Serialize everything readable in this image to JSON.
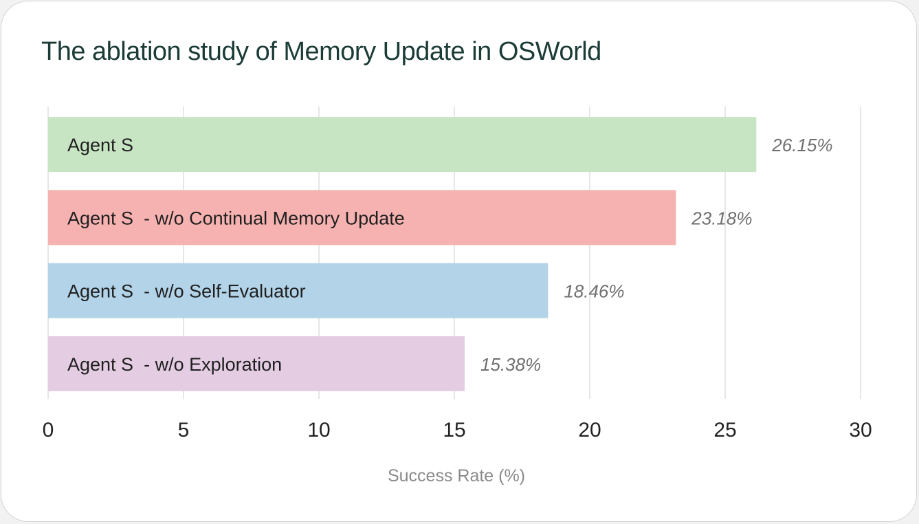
{
  "chart_data": {
    "type": "bar",
    "orientation": "horizontal",
    "title": "The ablation study of Memory Update in OSWorld",
    "xlabel": "Success Rate (%)",
    "ylabel": "",
    "xlim": [
      0,
      30
    ],
    "xticks": [
      0,
      5,
      10,
      15,
      20,
      25,
      30
    ],
    "grid": true,
    "legend": "none",
    "categories": [
      "Agent S",
      "Agent S  - w/o Continual Memory Update",
      "Agent S  - w/o Self-Evaluator",
      "Agent S  - w/o Exploration"
    ],
    "values": [
      26.15,
      23.18,
      18.46,
      15.38
    ],
    "data_labels": [
      "26.15%",
      "23.18%",
      "18.46%",
      "15.38%"
    ],
    "colors": [
      "#c8e5c3",
      "#f6b2b0",
      "#b2d3e8",
      "#e4cde3"
    ]
  }
}
